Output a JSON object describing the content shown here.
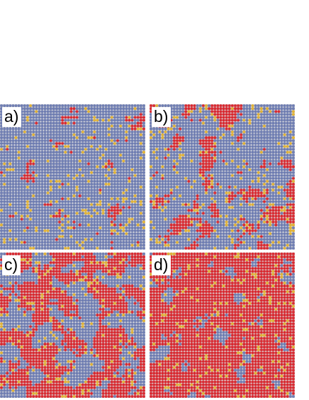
{
  "panels": [
    {
      "label": "a)",
      "red_fraction": 0.04,
      "yellow_fraction": 0.08
    },
    {
      "label": "b)",
      "red_fraction": 0.2,
      "yellow_fraction": 0.08
    },
    {
      "label": "c)",
      "red_fraction": 0.55,
      "yellow_fraction": 0.08
    },
    {
      "label": "d)",
      "red_fraction": 0.9,
      "yellow_fraction": 0.08
    }
  ],
  "colors": {
    "blue": "#6b7bb4",
    "red": "#df2027",
    "yellow": "#e9b52a",
    "background": "#ffffff"
  }
}
